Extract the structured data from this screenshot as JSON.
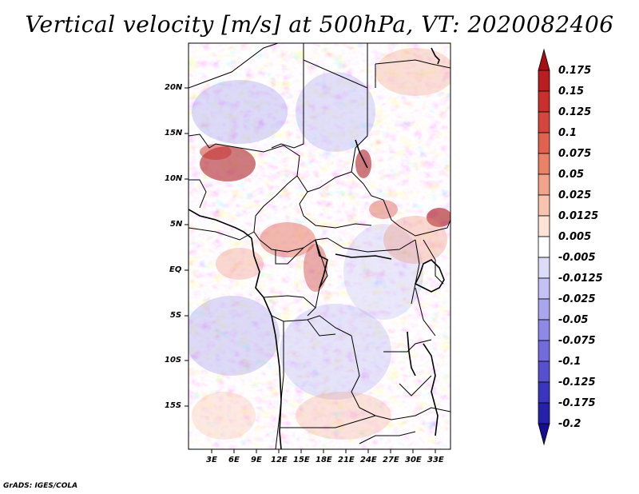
{
  "title": "Vertical velocity [m/s] at 500hPa, VT: 2020082406",
  "footer": "GrADS: IGES/COLA",
  "y_axis_labels": [
    "20N",
    "15N",
    "10N",
    "5N",
    "EQ",
    "5S",
    "10S",
    "15S"
  ],
  "x_axis_labels": [
    "3E",
    "6E",
    "9E",
    "12E",
    "15E",
    "18E",
    "21E",
    "24E",
    "27E",
    "30E",
    "33E"
  ],
  "colorbar": {
    "labels": [
      "0.175",
      "0.15",
      "0.125",
      "0.1",
      "0.075",
      "0.05",
      "0.025",
      "0.0125",
      "0.005",
      "-0.005",
      "-0.0125",
      "-0.025",
      "-0.05",
      "-0.075",
      "-0.1",
      "-0.125",
      "-0.175",
      "-0.2"
    ],
    "colors": [
      "#a50f15",
      "#b91d20",
      "#c9302c",
      "#d6453d",
      "#e0624f",
      "#ea8268",
      "#f2a38a",
      "#f8c4b0",
      "#fde2d6",
      "#ffffff",
      "#dcdcf8",
      "#c4c2f4",
      "#aaa6ee",
      "#8e88e6",
      "#716bdc",
      "#5550cf",
      "#3a35bf",
      "#2521ab",
      "#150e8f"
    ]
  }
}
